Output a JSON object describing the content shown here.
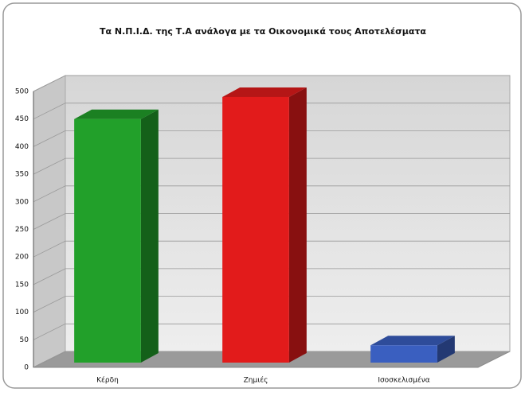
{
  "chart_data": {
    "type": "bar3d",
    "title": "Τα Ν.Π.Ι.Δ. της Τ.Α ανάλογα με τα Οικονομικά τους Αποτελέσματα",
    "categories": [
      "Κέρδη",
      "Ζημιές",
      "Ισοσκελισμένα"
    ],
    "values": [
      450,
      490,
      40
    ],
    "colors": [
      "#22a02a",
      "#e21b1b",
      "#3a5fc0"
    ],
    "ylim": [
      0,
      500
    ],
    "yticks": [
      0,
      50,
      100,
      150,
      200,
      250,
      300,
      350,
      400,
      450,
      500
    ],
    "grid": true
  }
}
